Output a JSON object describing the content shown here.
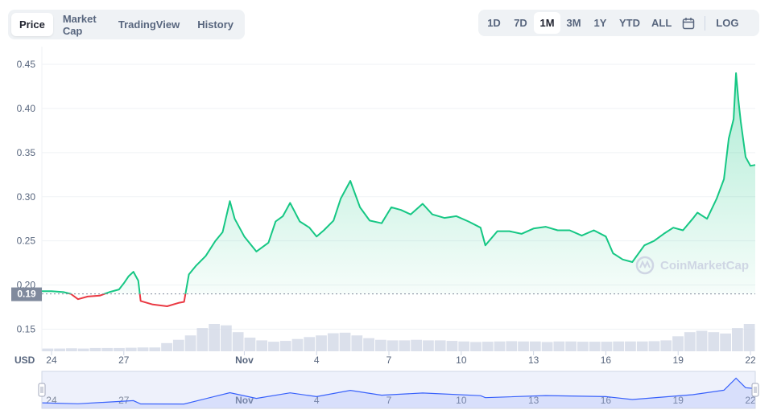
{
  "tabs": [
    {
      "label": "Price",
      "active": true
    },
    {
      "label": "Market Cap",
      "active": false
    },
    {
      "label": "TradingView",
      "active": false
    },
    {
      "label": "History",
      "active": false
    }
  ],
  "ranges": [
    {
      "label": "1D",
      "active": false
    },
    {
      "label": "7D",
      "active": false
    },
    {
      "label": "1M",
      "active": true
    },
    {
      "label": "3M",
      "active": false
    },
    {
      "label": "1Y",
      "active": false
    },
    {
      "label": "YTD",
      "active": false
    },
    {
      "label": "ALL",
      "active": false
    }
  ],
  "log_label": "LOG",
  "currency_label": "USD",
  "watermark": "CoinMarketCap",
  "colors": {
    "up": "#16c784",
    "down": "#ea3943",
    "nav": "#3861fb",
    "grid": "#eff2f5",
    "volume": "#cfd6e4"
  },
  "chart_data": {
    "type": "line",
    "y_ticks": [
      "0.45",
      "0.40",
      "0.35",
      "0.30",
      "0.25",
      "0.20",
      "0.15"
    ],
    "y_tick_values": [
      0.45,
      0.4,
      0.35,
      0.3,
      0.25,
      0.2,
      0.15
    ],
    "ylim": [
      0.125,
      0.47
    ],
    "x_ticks": [
      "24",
      "27",
      "Nov",
      "4",
      "7",
      "10",
      "13",
      "16",
      "19",
      "22"
    ],
    "x_tick_days": [
      0,
      3,
      8,
      11,
      14,
      17,
      20,
      23,
      26,
      29
    ],
    "x_domain": [
      -0.4,
      29.2
    ],
    "reference_price": 0.19,
    "reference_label": "0.19",
    "price": [
      [
        -0.4,
        0.193
      ],
      [
        0.0,
        0.193
      ],
      [
        0.5,
        0.192
      ],
      [
        0.8,
        0.19
      ],
      [
        1.1,
        0.184
      ],
      [
        1.5,
        0.187
      ],
      [
        2.0,
        0.188
      ],
      [
        2.4,
        0.192
      ],
      [
        2.8,
        0.195
      ],
      [
        3.0,
        0.202
      ],
      [
        3.2,
        0.21
      ],
      [
        3.4,
        0.215
      ],
      [
        3.6,
        0.205
      ],
      [
        3.7,
        0.182
      ],
      [
        4.2,
        0.178
      ],
      [
        4.8,
        0.176
      ],
      [
        5.3,
        0.18
      ],
      [
        5.5,
        0.181
      ],
      [
        5.7,
        0.212
      ],
      [
        6.0,
        0.222
      ],
      [
        6.4,
        0.233
      ],
      [
        6.8,
        0.25
      ],
      [
        7.1,
        0.26
      ],
      [
        7.4,
        0.295
      ],
      [
        7.6,
        0.275
      ],
      [
        8.0,
        0.255
      ],
      [
        8.5,
        0.238
      ],
      [
        9.0,
        0.248
      ],
      [
        9.3,
        0.272
      ],
      [
        9.6,
        0.278
      ],
      [
        9.9,
        0.293
      ],
      [
        10.3,
        0.272
      ],
      [
        10.7,
        0.265
      ],
      [
        11.0,
        0.255
      ],
      [
        11.3,
        0.262
      ],
      [
        11.7,
        0.273
      ],
      [
        12.0,
        0.298
      ],
      [
        12.4,
        0.318
      ],
      [
        12.8,
        0.288
      ],
      [
        13.2,
        0.273
      ],
      [
        13.7,
        0.27
      ],
      [
        14.1,
        0.288
      ],
      [
        14.5,
        0.285
      ],
      [
        14.9,
        0.28
      ],
      [
        15.4,
        0.292
      ],
      [
        15.8,
        0.28
      ],
      [
        16.3,
        0.276
      ],
      [
        16.8,
        0.278
      ],
      [
        17.3,
        0.272
      ],
      [
        17.8,
        0.265
      ],
      [
        18.0,
        0.245
      ],
      [
        18.5,
        0.261
      ],
      [
        19.0,
        0.261
      ],
      [
        19.5,
        0.258
      ],
      [
        20.0,
        0.264
      ],
      [
        20.5,
        0.266
      ],
      [
        21.0,
        0.262
      ],
      [
        21.5,
        0.262
      ],
      [
        22.0,
        0.256
      ],
      [
        22.5,
        0.262
      ],
      [
        23.0,
        0.255
      ],
      [
        23.3,
        0.236
      ],
      [
        23.7,
        0.229
      ],
      [
        24.1,
        0.226
      ],
      [
        24.6,
        0.245
      ],
      [
        25.0,
        0.25
      ],
      [
        25.4,
        0.258
      ],
      [
        25.8,
        0.265
      ],
      [
        26.2,
        0.262
      ],
      [
        26.6,
        0.275
      ],
      [
        26.8,
        0.282
      ],
      [
        27.2,
        0.275
      ],
      [
        27.6,
        0.298
      ],
      [
        27.9,
        0.32
      ],
      [
        28.1,
        0.366
      ],
      [
        28.3,
        0.388
      ],
      [
        28.4,
        0.44
      ],
      [
        28.5,
        0.41
      ],
      [
        28.6,
        0.385
      ],
      [
        28.8,
        0.345
      ],
      [
        29.0,
        0.335
      ],
      [
        29.2,
        0.336
      ]
    ],
    "volume": [
      0.1,
      0.1,
      0.11,
      0.1,
      0.12,
      0.12,
      0.12,
      0.13,
      0.14,
      0.14,
      0.3,
      0.42,
      0.58,
      0.85,
      1.0,
      0.95,
      0.7,
      0.5,
      0.4,
      0.35,
      0.38,
      0.45,
      0.52,
      0.58,
      0.66,
      0.68,
      0.58,
      0.48,
      0.42,
      0.4,
      0.4,
      0.42,
      0.4,
      0.4,
      0.38,
      0.36,
      0.34,
      0.35,
      0.36,
      0.37,
      0.36,
      0.36,
      0.34,
      0.36,
      0.36,
      0.35,
      0.35,
      0.35,
      0.36,
      0.36,
      0.36,
      0.37,
      0.4,
      0.55,
      0.7,
      0.75,
      0.7,
      0.65,
      0.85,
      1.0
    ],
    "navigator": [
      [
        -0.4,
        0.193
      ],
      [
        1.1,
        0.184
      ],
      [
        3.4,
        0.215
      ],
      [
        3.7,
        0.182
      ],
      [
        5.5,
        0.181
      ],
      [
        7.4,
        0.295
      ],
      [
        8.5,
        0.238
      ],
      [
        9.9,
        0.293
      ],
      [
        11.0,
        0.255
      ],
      [
        12.4,
        0.318
      ],
      [
        13.7,
        0.27
      ],
      [
        15.4,
        0.292
      ],
      [
        17.8,
        0.265
      ],
      [
        18.0,
        0.245
      ],
      [
        20.5,
        0.266
      ],
      [
        23.0,
        0.255
      ],
      [
        24.1,
        0.226
      ],
      [
        26.6,
        0.275
      ],
      [
        27.9,
        0.32
      ],
      [
        28.4,
        0.44
      ],
      [
        28.8,
        0.345
      ],
      [
        29.2,
        0.336
      ]
    ]
  }
}
